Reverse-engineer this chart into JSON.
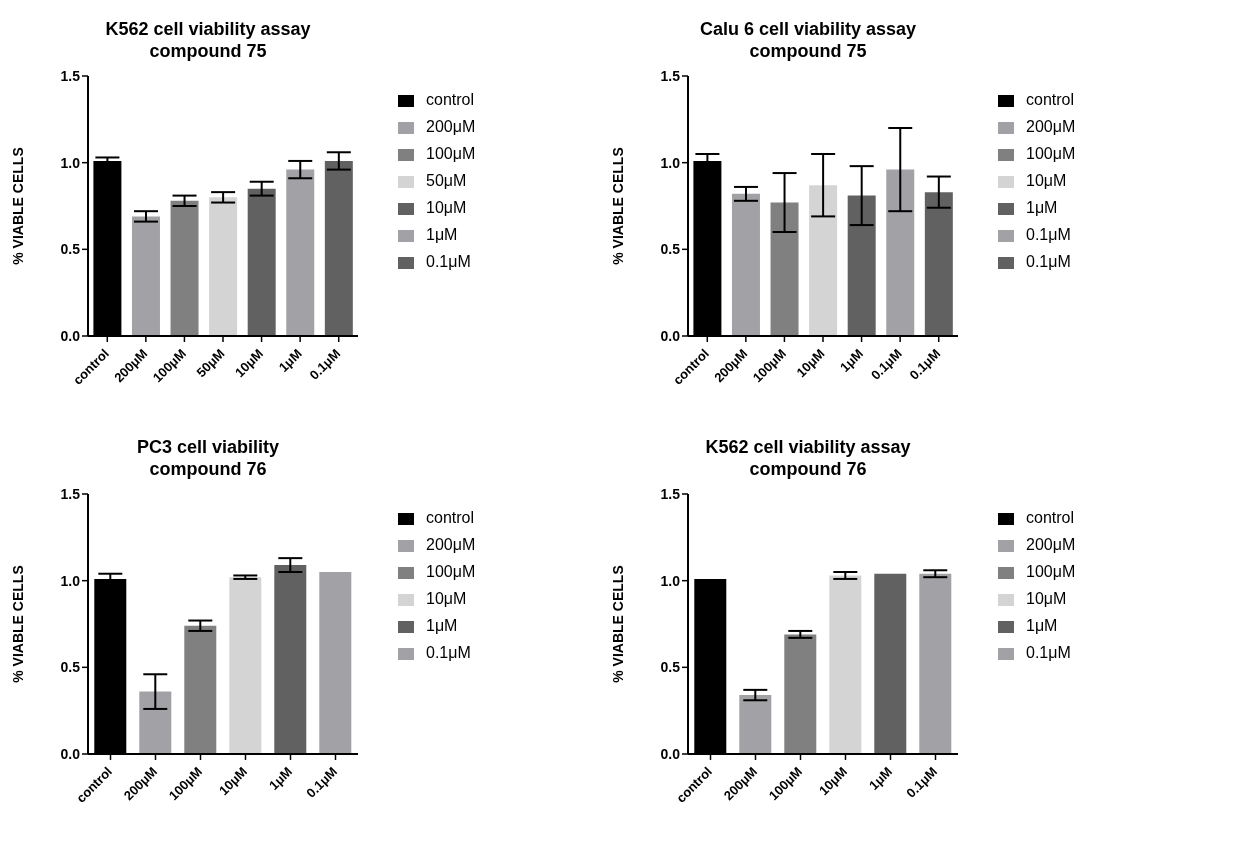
{
  "chart_data": [
    {
      "type": "bar",
      "title": "K562 cell viability assay\ncompound 75",
      "ylabel": "% VIABLE CELLS",
      "legend": "right",
      "stacked": true,
      "categories": [
        "control",
        "200μM",
        "100μM",
        "50μM",
        "10μM",
        "1μM",
        "0.1μM"
      ],
      "series": [
        {
          "name": "control",
          "color": "#000000",
          "values": [
            1.01,
            null,
            null,
            null,
            null,
            null,
            null
          ],
          "errors": [
            0.02,
            null,
            null,
            null,
            null,
            null,
            null
          ]
        },
        {
          "name": "200μM",
          "color": "#a2a2a6",
          "values": [
            null,
            0.69,
            null,
            null,
            null,
            null,
            null
          ],
          "errors": [
            null,
            0.03,
            null,
            null,
            null,
            null,
            null
          ]
        },
        {
          "name": "100μM",
          "color": "#808080",
          "values": [
            null,
            null,
            0.78,
            null,
            null,
            null,
            null
          ],
          "errors": [
            null,
            null,
            0.03,
            null,
            null,
            null,
            null
          ]
        },
        {
          "name": "50μM",
          "color": "#d4d4d4",
          "values": [
            null,
            null,
            null,
            0.8,
            null,
            null,
            null
          ],
          "errors": [
            null,
            null,
            null,
            0.03,
            null,
            null,
            null
          ]
        },
        {
          "name": "10μM",
          "color": "#616161",
          "values": [
            null,
            null,
            null,
            null,
            0.85,
            null,
            null
          ],
          "errors": [
            null,
            null,
            null,
            null,
            0.04,
            null,
            null
          ]
        },
        {
          "name": "1μM",
          "color": "#a2a2a6",
          "values": [
            null,
            null,
            null,
            null,
            null,
            0.96,
            null
          ],
          "errors": [
            null,
            null,
            null,
            null,
            null,
            0.05,
            null
          ]
        },
        {
          "name": "0.1μM",
          "color": "#616161",
          "values": [
            null,
            null,
            null,
            null,
            null,
            null,
            1.01
          ],
          "errors": [
            null,
            null,
            null,
            null,
            null,
            null,
            0.05
          ]
        }
      ],
      "ylim": [
        0,
        1.5
      ],
      "yticks": [
        {
          "value": 0,
          "label": "0.0"
        },
        {
          "value": 0.5,
          "label": "0.5"
        },
        {
          "value": 1,
          "label": "1.0"
        },
        {
          "value": 1.5,
          "label": "1.5"
        }
      ]
    },
    {
      "type": "bar",
      "title": "Calu 6 cell viability assay\ncompound 75",
      "ylabel": "% VIABLE CELLS",
      "legend": "right",
      "stacked": true,
      "categories": [
        "control",
        "200μM",
        "100μM",
        "10μM",
        "1μM",
        "0.1μM",
        "0.1μM"
      ],
      "series": [
        {
          "name": "control",
          "color": "#000000",
          "values": [
            1.01,
            null,
            null,
            null,
            null,
            null,
            null
          ],
          "errors": [
            0.04,
            null,
            null,
            null,
            null,
            null,
            null
          ]
        },
        {
          "name": "200μM",
          "color": "#a2a2a6",
          "values": [
            null,
            0.82,
            null,
            null,
            null,
            null,
            null
          ],
          "errors": [
            null,
            0.04,
            null,
            null,
            null,
            null,
            null
          ]
        },
        {
          "name": "100μM",
          "color": "#808080",
          "values": [
            null,
            null,
            0.77,
            null,
            null,
            null,
            null
          ],
          "errors": [
            null,
            null,
            0.17,
            null,
            null,
            null,
            null
          ]
        },
        {
          "name": "10μM",
          "color": "#d4d4d4",
          "values": [
            null,
            null,
            null,
            0.87,
            null,
            null,
            null
          ],
          "errors": [
            null,
            null,
            null,
            0.18,
            null,
            null,
            null
          ]
        },
        {
          "name": "1μM",
          "color": "#616161",
          "values": [
            null,
            null,
            null,
            null,
            0.81,
            null,
            null
          ],
          "errors": [
            null,
            null,
            null,
            null,
            0.17,
            null,
            null
          ]
        },
        {
          "name": "0.1μM",
          "color": "#a2a2a6",
          "values": [
            null,
            null,
            null,
            null,
            null,
            0.96,
            null
          ],
          "errors": [
            null,
            null,
            null,
            null,
            null,
            0.24,
            null
          ]
        },
        {
          "name": "0.1μM",
          "color": "#616161",
          "values": [
            null,
            null,
            null,
            null,
            null,
            null,
            0.83
          ],
          "errors": [
            null,
            null,
            null,
            null,
            null,
            null,
            0.09
          ]
        }
      ],
      "ylim": [
        0,
        1.5
      ],
      "yticks": [
        {
          "value": 0,
          "label": "0.0"
        },
        {
          "value": 0.5,
          "label": "0.5"
        },
        {
          "value": 1,
          "label": "1.0"
        },
        {
          "value": 1.5,
          "label": "1.5"
        }
      ]
    },
    {
      "type": "bar",
      "title": "PC3 cell viability\ncompound 76",
      "ylabel": "% VIABLE CELLS",
      "legend": "right",
      "stacked": true,
      "categories": [
        "control",
        "200μM",
        "100μM",
        "10μM",
        "1μM",
        "0.1μM"
      ],
      "series": [
        {
          "name": "control",
          "color": "#000000",
          "values": [
            1.01,
            null,
            null,
            null,
            null,
            null
          ],
          "errors": [
            0.03,
            null,
            null,
            null,
            null,
            null
          ]
        },
        {
          "name": "200μM",
          "color": "#a2a2a6",
          "values": [
            null,
            0.36,
            null,
            null,
            null,
            null
          ],
          "errors": [
            null,
            0.1,
            null,
            null,
            null,
            null
          ]
        },
        {
          "name": "100μM",
          "color": "#808080",
          "values": [
            null,
            null,
            0.74,
            null,
            null,
            null
          ],
          "errors": [
            null,
            null,
            0.03,
            null,
            null,
            null
          ]
        },
        {
          "name": "10μM",
          "color": "#d4d4d4",
          "values": [
            null,
            null,
            null,
            1.02,
            null,
            null
          ],
          "errors": [
            null,
            null,
            null,
            0.01,
            null,
            null
          ]
        },
        {
          "name": "1μM",
          "color": "#616161",
          "values": [
            null,
            null,
            null,
            null,
            1.09,
            null
          ],
          "errors": [
            null,
            null,
            null,
            null,
            0.04,
            null
          ]
        },
        {
          "name": "0.1μM",
          "color": "#a2a2a6",
          "values": [
            null,
            null,
            null,
            null,
            null,
            1.05
          ]
        }
      ],
      "ylim": [
        0,
        1.5
      ],
      "yticks": [
        {
          "value": 0,
          "label": "0.0"
        },
        {
          "value": 0.5,
          "label": "0.5"
        },
        {
          "value": 1,
          "label": "1.0"
        },
        {
          "value": 1.5,
          "label": "1.5"
        }
      ]
    },
    {
      "type": "bar",
      "title": "K562 cell viability assay\ncompound 76",
      "ylabel": "% VIABLE CELLS",
      "legend": "right",
      "stacked": true,
      "categories": [
        "control",
        "200μM",
        "100μM",
        "10μM",
        "1μM",
        "0.1μM"
      ],
      "series": [
        {
          "name": "control",
          "color": "#000000",
          "values": [
            1.01,
            null,
            null,
            null,
            null,
            null
          ]
        },
        {
          "name": "200μM",
          "color": "#a2a2a6",
          "values": [
            null,
            0.34,
            null,
            null,
            null,
            null
          ],
          "errors": [
            null,
            0.03,
            null,
            null,
            null,
            null
          ]
        },
        {
          "name": "100μM",
          "color": "#808080",
          "values": [
            null,
            null,
            0.69,
            null,
            null,
            null
          ],
          "errors": [
            null,
            null,
            0.02,
            null,
            null,
            null
          ]
        },
        {
          "name": "10μM",
          "color": "#d4d4d4",
          "values": [
            null,
            null,
            null,
            1.03,
            null,
            null
          ],
          "errors": [
            null,
            null,
            null,
            0.02,
            null,
            null
          ]
        },
        {
          "name": "1μM",
          "color": "#616161",
          "values": [
            null,
            null,
            null,
            null,
            1.04,
            null
          ]
        },
        {
          "name": "0.1μM",
          "color": "#a2a2a6",
          "values": [
            null,
            null,
            null,
            null,
            null,
            1.04
          ],
          "errors": [
            null,
            null,
            null,
            null,
            null,
            0.02
          ]
        }
      ],
      "ylim": [
        0,
        1.5
      ],
      "yticks": [
        {
          "value": 0,
          "label": "0.0"
        },
        {
          "value": 0.5,
          "label": "0.5"
        },
        {
          "value": 1,
          "label": "1.0"
        },
        {
          "value": 1.5,
          "label": "1.5"
        }
      ]
    }
  ]
}
